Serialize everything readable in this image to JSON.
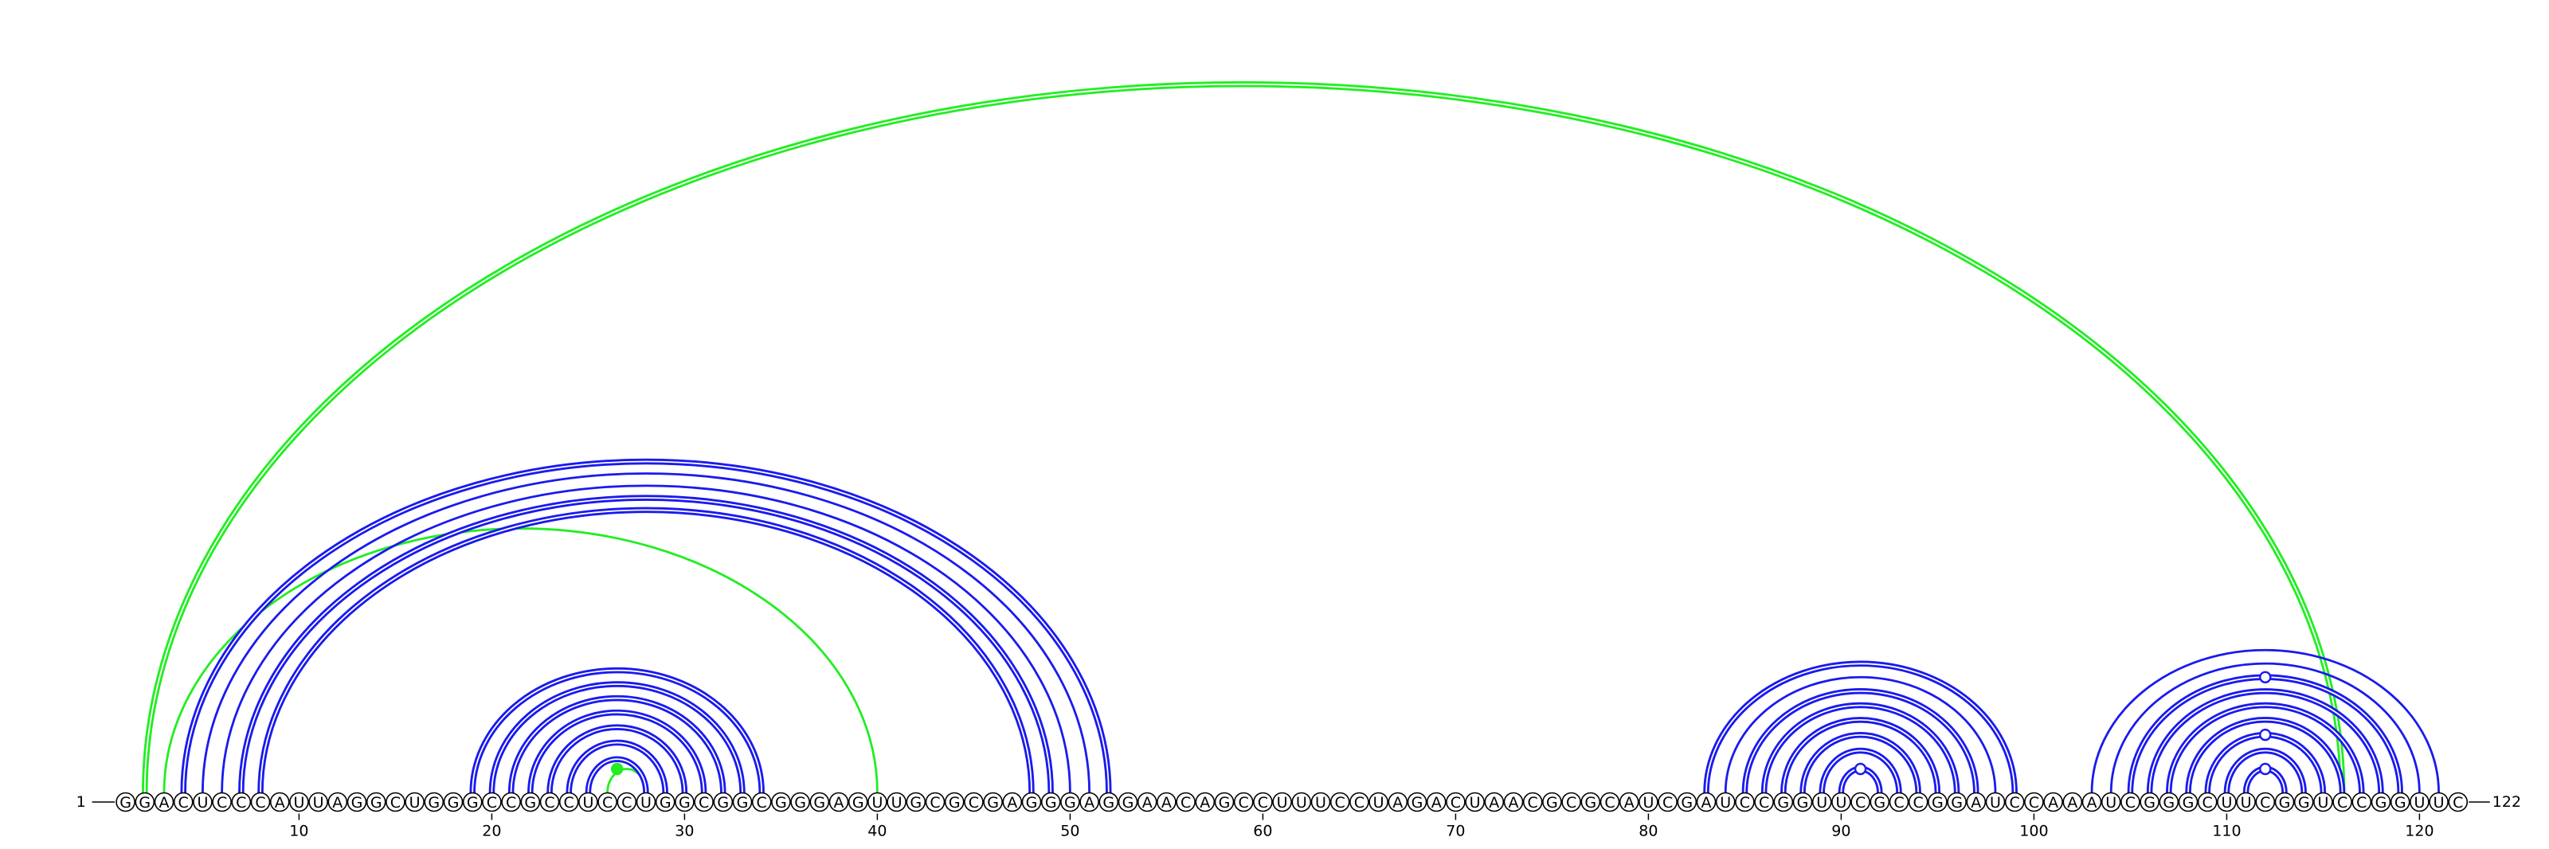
{
  "sequence": "GGACUCCCAUUAGGCUGGGCCGCCUCCUGGCGGCGGGAGUUGCGCGAGGGAGGAACAGCCUUUCCUAGACUAACGCGCAUCGAUCCGGUUCGCCGGAUCCAAAUCGGGCUUCGGUCCGGUUC",
  "start_label": "1",
  "end_label": "122",
  "ticks": [
    10,
    20,
    30,
    40,
    50,
    60,
    70,
    80,
    90,
    100,
    110,
    120
  ],
  "colors": {
    "blue": "#1a1aee",
    "green": "#22ee22",
    "backbone": "#000000"
  },
  "arcs": [
    {
      "i": 2,
      "j": 116,
      "color": "green",
      "double": true
    },
    {
      "i": 3,
      "j": 40,
      "color": "green",
      "double": false
    },
    {
      "i": 26,
      "j": 28,
      "color": "green",
      "double": false
    },
    {
      "i": 4,
      "j": 52,
      "color": "blue",
      "double": true
    },
    {
      "i": 5,
      "j": 51,
      "color": "blue",
      "double": false
    },
    {
      "i": 6,
      "j": 50,
      "color": "blue",
      "double": false
    },
    {
      "i": 7,
      "j": 49,
      "color": "blue",
      "double": true
    },
    {
      "i": 8,
      "j": 48,
      "color": "blue",
      "double": true
    },
    {
      "i": 19,
      "j": 34,
      "color": "blue",
      "double": true
    },
    {
      "i": 20,
      "j": 33,
      "color": "blue",
      "double": true
    },
    {
      "i": 21,
      "j": 32,
      "color": "blue",
      "double": true
    },
    {
      "i": 22,
      "j": 31,
      "color": "blue",
      "double": true
    },
    {
      "i": 23,
      "j": 30,
      "color": "blue",
      "double": true
    },
    {
      "i": 24,
      "j": 29,
      "color": "blue",
      "double": true
    },
    {
      "i": 25,
      "j": 28,
      "color": "blue",
      "double": true
    },
    {
      "i": 83,
      "j": 99,
      "color": "blue",
      "double": true
    },
    {
      "i": 84,
      "j": 98,
      "color": "blue",
      "double": false
    },
    {
      "i": 85,
      "j": 97,
      "color": "blue",
      "double": true
    },
    {
      "i": 86,
      "j": 96,
      "color": "blue",
      "double": true
    },
    {
      "i": 87,
      "j": 95,
      "color": "blue",
      "double": true
    },
    {
      "i": 88,
      "j": 94,
      "color": "blue",
      "double": true
    },
    {
      "i": 89,
      "j": 93,
      "color": "blue",
      "double": true
    },
    {
      "i": 90,
      "j": 92,
      "color": "blue",
      "double": true
    },
    {
      "i": 103,
      "j": 121,
      "color": "blue",
      "double": false
    },
    {
      "i": 104,
      "j": 120,
      "color": "blue",
      "double": false
    },
    {
      "i": 105,
      "j": 119,
      "color": "blue",
      "double": true
    },
    {
      "i": 106,
      "j": 118,
      "color": "blue",
      "double": true
    },
    {
      "i": 107,
      "j": 117,
      "color": "blue",
      "double": true
    },
    {
      "i": 108,
      "j": 116,
      "color": "blue",
      "double": true
    },
    {
      "i": 109,
      "j": 115,
      "color": "blue",
      "double": true
    },
    {
      "i": 110,
      "j": 114,
      "color": "blue",
      "double": true
    },
    {
      "i": 111,
      "j": 113,
      "color": "blue",
      "double": true
    }
  ],
  "markers": [
    {
      "pos": 26.5,
      "level": 1,
      "color": "green",
      "filled": true
    },
    {
      "pos": 91,
      "level": 1,
      "color": "blue",
      "filled": false
    },
    {
      "pos": 112,
      "level": 1,
      "color": "blue",
      "filled": false
    },
    {
      "pos": 112,
      "level": 3,
      "color": "blue",
      "filled": false
    },
    {
      "pos": 112,
      "level": 7,
      "color": "blue",
      "filled": false
    }
  ]
}
